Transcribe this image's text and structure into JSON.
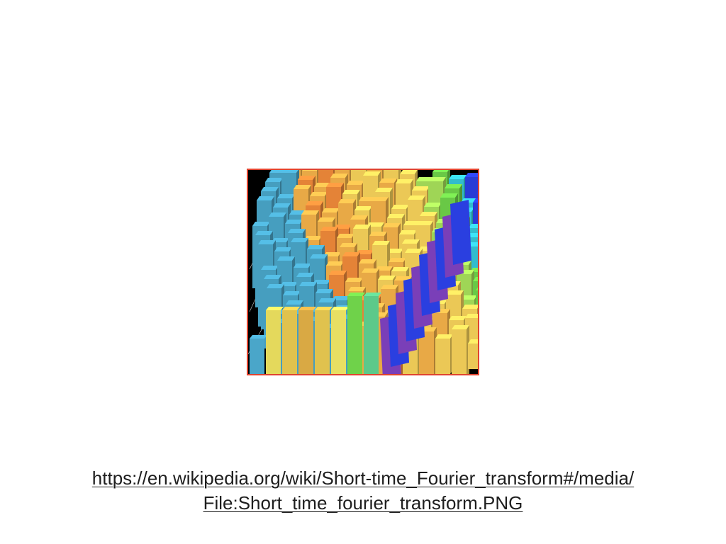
{
  "slide": {
    "figure_border_color": "#e0442f",
    "figure_background": "#000000",
    "figure_alt": "",
    "link_lines": [
      "https://en.wikipedia.org/wiki/Short-time_Fourier_transform#/media/",
      "File:Short_time_fourier_transform.PNG"
    ]
  },
  "figure_palette": [
    "#4aa6c9",
    "#e4d95c",
    "#e0c24e",
    "#d9a944",
    "#e5c553",
    "#e8df63",
    "#6fd24a",
    "#5cc98a",
    "#2a3fe0",
    "#7a3fb8",
    "#f08a3a",
    "#f4b24a",
    "#f7d25a",
    "#a7e05a",
    "#35c6d8"
  ]
}
